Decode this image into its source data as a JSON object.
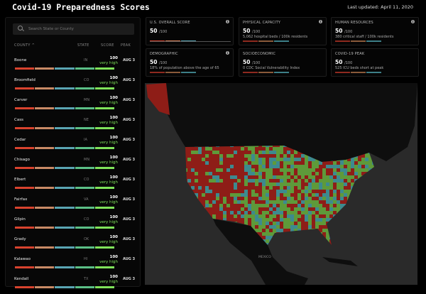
{
  "header": {
    "title": "Covid-19 Preparedness Scores",
    "last_updated": "Last updated: April 11, 2020"
  },
  "sidebar": {
    "search_placeholder": "Search State or County",
    "columns": {
      "county": "COUNTY ^",
      "state": "STATE",
      "score": "SCORE",
      "peak": "PEAK"
    },
    "rows": [
      {
        "county": "Boone",
        "state": "IN",
        "score": "100",
        "level": "very high",
        "peak": "AUG 3"
      },
      {
        "county": "Broomfield",
        "state": "CO",
        "score": "100",
        "level": "very high",
        "peak": "AUG 3"
      },
      {
        "county": "Carver",
        "state": "MN",
        "score": "100",
        "level": "very high",
        "peak": "AUG 3"
      },
      {
        "county": "Cass",
        "state": "NE",
        "score": "100",
        "level": "very high",
        "peak": "AUG 3"
      },
      {
        "county": "Cedar",
        "state": "IA",
        "score": "100",
        "level": "very high",
        "peak": "AUG 3"
      },
      {
        "county": "Chisago",
        "state": "MN",
        "score": "100",
        "level": "very high",
        "peak": "AUG 3"
      },
      {
        "county": "Elbert",
        "state": "CO",
        "score": "100",
        "level": "very high",
        "peak": "AUG 3"
      },
      {
        "county": "Fairfax",
        "state": "VA",
        "score": "100",
        "level": "very high",
        "peak": "AUG 3"
      },
      {
        "county": "Gilpin",
        "state": "CO",
        "score": "100",
        "level": "very high",
        "peak": "AUG 3"
      },
      {
        "county": "Grady",
        "state": "OK",
        "score": "100",
        "level": "very high",
        "peak": "AUG 3"
      },
      {
        "county": "Kalawao",
        "state": "HI",
        "score": "100",
        "level": "very high",
        "peak": "AUG 3"
      },
      {
        "county": "Kendall",
        "state": "TX",
        "score": "100",
        "level": "very high",
        "peak": "AUG 3"
      }
    ],
    "bar_colors": [
      "#d8432e",
      "#c98a66",
      "#5aa5b3",
      "#5bbf86",
      "#7fe35a"
    ]
  },
  "cards": [
    {
      "label": "U.S. OVERALL SCORE",
      "value": "50",
      "unit": "/100",
      "desc": "",
      "info": true
    },
    {
      "label": "PHYSICAL CAPACITY",
      "value": "50",
      "unit": "/100",
      "desc": "5,062 hospital beds / 100k residents",
      "info": true
    },
    {
      "label": "HUMAN RESOURCES",
      "value": "50",
      "unit": "/100",
      "desc": "380 critical staff / 100k residents",
      "info": true
    },
    {
      "label": "DEMOGRAPHIC",
      "value": "50",
      "unit": "/100",
      "desc": "18% of population above the age of 65",
      "info": true
    },
    {
      "label": "SOCIOECONOMIC",
      "value": "50",
      "unit": "/100",
      "desc": "0 CDC Social Vulnerability Index",
      "info": false
    },
    {
      "label": "COVID-19 PEAK",
      "value": "50",
      "unit": "/100",
      "desc": "525 ICU beds short at peak",
      "info": false
    }
  ],
  "map": {
    "label_mexico": "MEXICO",
    "colors": {
      "water": "#2a2a2a",
      "land": "#0e0e0e",
      "low": "#8e1d17",
      "mid": "#3d8a8f",
      "high": "#5e9a3a"
    }
  }
}
